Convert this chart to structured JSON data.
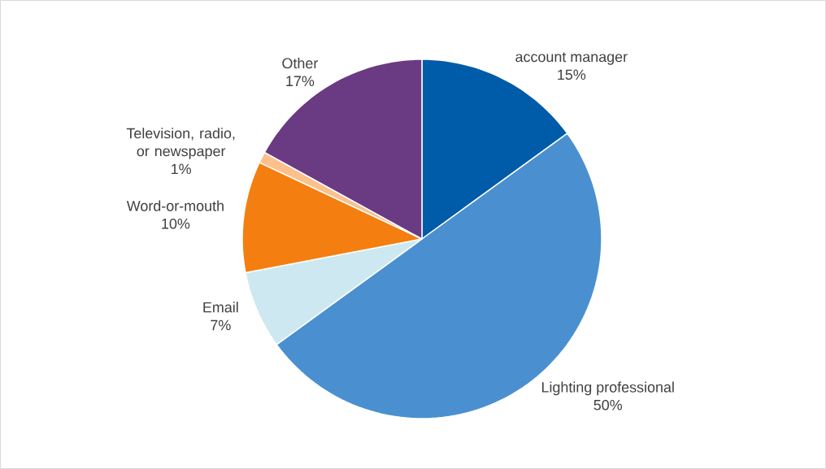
{
  "chart_data": {
    "type": "pie",
    "categories": [
      "account manager",
      "Lighting professional",
      "Email",
      "Word-or-mouth",
      "Television, radio, or newspaper",
      "Other"
    ],
    "values": [
      15,
      50,
      7,
      10,
      1,
      17
    ],
    "value_labels": [
      "15%",
      "50%",
      "7%",
      "10%",
      "1%",
      "17%"
    ],
    "colors": [
      "#005ca9",
      "#4a90d0",
      "#cde8f0",
      "#f47f10",
      "#fbc08c",
      "#6a3a82"
    ]
  }
}
